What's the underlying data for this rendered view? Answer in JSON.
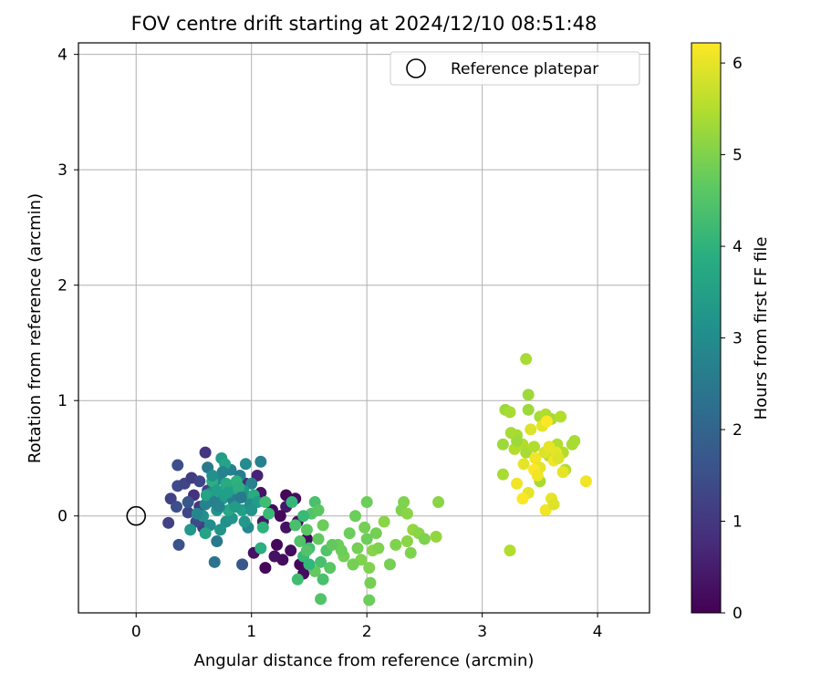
{
  "chart_data": {
    "type": "scatter",
    "title": "FOV centre drift starting at 2024/12/10 08:51:48",
    "xlabel": "Angular distance from reference (arcmin)",
    "ylabel": "Rotation from reference (arcmin)",
    "xlim": [
      -0.5,
      4.45
    ],
    "ylim": [
      -0.84,
      4.1
    ],
    "xticks": [
      0,
      1,
      2,
      3,
      4
    ],
    "yticks": [
      0,
      1,
      2,
      3,
      4
    ],
    "grid": true,
    "legend": {
      "placement": "top-right",
      "entries": [
        "Reference platepar"
      ]
    },
    "reference_point": {
      "x": 0,
      "y": 0,
      "label": "Reference platepar"
    },
    "colorbar": {
      "label": "Hours from first FF file",
      "colormap": "viridis",
      "range": [
        0,
        6.22
      ],
      "ticks": [
        0,
        1,
        2,
        3,
        4,
        5,
        6
      ]
    },
    "point_style": {
      "marker": "filled-circle"
    },
    "series": [
      {
        "points": [
          {
            "x": 1.22,
            "y": -0.25,
            "c": 0.1
          },
          {
            "x": 1.27,
            "y": -0.38,
            "c": 0.2
          },
          {
            "x": 1.3,
            "y": -0.1,
            "c": 0.3
          },
          {
            "x": 1.34,
            "y": -0.3,
            "c": 0.2
          },
          {
            "x": 1.4,
            "y": -0.05,
            "c": 0.3
          },
          {
            "x": 1.42,
            "y": -0.42,
            "c": 0.1
          },
          {
            "x": 1.45,
            "y": -0.5,
            "c": 0.2
          },
          {
            "x": 1.48,
            "y": -0.2,
            "c": 0.2
          },
          {
            "x": 1.12,
            "y": -0.45,
            "c": 0.1
          },
          {
            "x": 1.02,
            "y": -0.32,
            "c": 0.3
          },
          {
            "x": 1.3,
            "y": 0.08,
            "c": 0.4
          },
          {
            "x": 1.25,
            "y": 0.0,
            "c": 0.15
          },
          {
            "x": 1.18,
            "y": 0.05,
            "c": 0.2
          },
          {
            "x": 1.1,
            "y": -0.05,
            "c": 0.4
          },
          {
            "x": 1.3,
            "y": 0.18,
            "c": 0.1
          },
          {
            "x": 1.38,
            "y": 0.15,
            "c": 0.2
          },
          {
            "x": 1.08,
            "y": 0.2,
            "c": 0.3
          },
          {
            "x": 1.05,
            "y": 0.35,
            "c": 0.6
          },
          {
            "x": 0.95,
            "y": 0.28,
            "c": 0.7
          },
          {
            "x": 1.2,
            "y": -0.35,
            "c": 0.3
          },
          {
            "x": 0.3,
            "y": 0.15,
            "c": 1.2
          },
          {
            "x": 0.36,
            "y": 0.26,
            "c": 1.4
          },
          {
            "x": 0.42,
            "y": 0.28,
            "c": 1.3
          },
          {
            "x": 0.48,
            "y": 0.33,
            "c": 1.1
          },
          {
            "x": 0.6,
            "y": 0.55,
            "c": 1.0
          },
          {
            "x": 0.36,
            "y": 0.44,
            "c": 1.5
          },
          {
            "x": 0.28,
            "y": -0.06,
            "c": 1.2
          },
          {
            "x": 0.37,
            "y": -0.25,
            "c": 1.6
          },
          {
            "x": 0.45,
            "y": 0.03,
            "c": 1.3
          },
          {
            "x": 0.55,
            "y": 0.08,
            "c": 1.0
          },
          {
            "x": 0.35,
            "y": 0.08,
            "c": 1.5
          },
          {
            "x": 0.5,
            "y": 0.18,
            "c": 0.9
          },
          {
            "x": 0.58,
            "y": -0.1,
            "c": 1.1
          },
          {
            "x": 0.45,
            "y": 0.12,
            "c": 1.7
          },
          {
            "x": 0.52,
            "y": -0.05,
            "c": 1.4
          },
          {
            "x": 0.62,
            "y": 0.22,
            "c": 1.2
          },
          {
            "x": 0.68,
            "y": -0.4,
            "c": 2.4
          },
          {
            "x": 0.7,
            "y": -0.22,
            "c": 2.5
          },
          {
            "x": 0.92,
            "y": -0.42,
            "c": 1.7
          },
          {
            "x": 0.55,
            "y": 0.3,
            "c": 1.3
          },
          {
            "x": 0.6,
            "y": 0.1,
            "c": 2.8
          },
          {
            "x": 0.65,
            "y": 0.2,
            "c": 3.0
          },
          {
            "x": 0.7,
            "y": 0.05,
            "c": 3.2
          },
          {
            "x": 0.72,
            "y": 0.32,
            "c": 2.9
          },
          {
            "x": 0.75,
            "y": 0.15,
            "c": 3.4
          },
          {
            "x": 0.78,
            "y": -0.05,
            "c": 3.1
          },
          {
            "x": 0.8,
            "y": 0.25,
            "c": 3.6
          },
          {
            "x": 0.82,
            "y": 0.4,
            "c": 2.7
          },
          {
            "x": 0.85,
            "y": 0.1,
            "c": 3.3
          },
          {
            "x": 0.88,
            "y": 0.2,
            "c": 3.8
          },
          {
            "x": 0.9,
            "y": 0.35,
            "c": 2.6
          },
          {
            "x": 0.92,
            "y": 0.05,
            "c": 3.5
          },
          {
            "x": 0.95,
            "y": 0.45,
            "c": 3.0
          },
          {
            "x": 0.98,
            "y": 0.15,
            "c": 3.7
          },
          {
            "x": 1.0,
            "y": 0.28,
            "c": 2.8
          },
          {
            "x": 0.62,
            "y": 0.42,
            "c": 2.5
          },
          {
            "x": 0.66,
            "y": 0.3,
            "c": 3.9
          },
          {
            "x": 0.74,
            "y": 0.5,
            "c": 3.4
          },
          {
            "x": 0.77,
            "y": 0.45,
            "c": 3.6
          },
          {
            "x": 0.83,
            "y": -0.02,
            "c": 3.2
          },
          {
            "x": 0.87,
            "y": 0.3,
            "c": 4.0
          },
          {
            "x": 0.93,
            "y": 0.22,
            "c": 3.3
          },
          {
            "x": 0.97,
            "y": -0.1,
            "c": 2.9
          },
          {
            "x": 1.02,
            "y": 0.18,
            "c": 3.8
          },
          {
            "x": 1.08,
            "y": 0.47,
            "c": 2.7
          },
          {
            "x": 0.58,
            "y": 0.0,
            "c": 3.1
          },
          {
            "x": 0.64,
            "y": -0.08,
            "c": 3.0
          },
          {
            "x": 0.7,
            "y": 0.22,
            "c": 3.5
          },
          {
            "x": 0.75,
            "y": 0.38,
            "c": 2.8
          },
          {
            "x": 0.8,
            "y": 0.05,
            "c": 3.7
          },
          {
            "x": 0.84,
            "y": 0.14,
            "c": 2.6
          },
          {
            "x": 0.89,
            "y": 0.25,
            "c": 3.9
          },
          {
            "x": 0.94,
            "y": -0.05,
            "c": 3.3
          },
          {
            "x": 0.99,
            "y": 0.1,
            "c": 3.0
          },
          {
            "x": 0.61,
            "y": 0.18,
            "c": 3.6
          },
          {
            "x": 0.68,
            "y": 0.12,
            "c": 2.7
          },
          {
            "x": 0.73,
            "y": -0.12,
            "c": 3.2
          },
          {
            "x": 0.86,
            "y": 0.08,
            "c": 3.4
          },
          {
            "x": 0.78,
            "y": 0.28,
            "c": 3.8
          },
          {
            "x": 0.91,
            "y": 0.16,
            "c": 2.5
          },
          {
            "x": 1.05,
            "y": 0.12,
            "c": 3.4
          },
          {
            "x": 1.08,
            "y": -0.28,
            "c": 3.9
          },
          {
            "x": 1.1,
            "y": -0.1,
            "c": 4.0
          },
          {
            "x": 0.47,
            "y": -0.12,
            "c": 3.3
          },
          {
            "x": 0.53,
            "y": 0.02,
            "c": 2.9
          },
          {
            "x": 0.66,
            "y": 0.35,
            "c": 3.1
          },
          {
            "x": 0.79,
            "y": 0.2,
            "c": 3.5
          },
          {
            "x": 0.6,
            "y": -0.15,
            "c": 3.6
          },
          {
            "x": 0.72,
            "y": 0.08,
            "c": 2.8
          },
          {
            "x": 1.0,
            "y": 0.05,
            "c": 3.2
          },
          {
            "x": 1.15,
            "y": 0.02,
            "c": 4.2
          },
          {
            "x": 1.12,
            "y": 0.12,
            "c": 4.3
          },
          {
            "x": 1.35,
            "y": 0.12,
            "c": 4.1
          },
          {
            "x": 1.38,
            "y": -0.08,
            "c": 4.4
          },
          {
            "x": 1.42,
            "y": -0.22,
            "c": 4.5
          },
          {
            "x": 1.45,
            "y": -0.35,
            "c": 4.2
          },
          {
            "x": 1.48,
            "y": -0.12,
            "c": 4.6
          },
          {
            "x": 1.5,
            "y": -0.28,
            "c": 4.3
          },
          {
            "x": 1.52,
            "y": 0.02,
            "c": 4.5
          },
          {
            "x": 1.55,
            "y": 0.12,
            "c": 4.4
          },
          {
            "x": 1.58,
            "y": -0.2,
            "c": 4.7
          },
          {
            "x": 1.6,
            "y": -0.4,
            "c": 4.4
          },
          {
            "x": 1.62,
            "y": -0.08,
            "c": 4.8
          },
          {
            "x": 1.65,
            "y": -0.3,
            "c": 4.5
          },
          {
            "x": 1.68,
            "y": -0.45,
            "c": 4.6
          },
          {
            "x": 1.4,
            "y": -0.55,
            "c": 4.3
          },
          {
            "x": 1.6,
            "y": -0.72,
            "c": 4.5
          },
          {
            "x": 1.55,
            "y": -0.48,
            "c": 4.7
          },
          {
            "x": 1.45,
            "y": 0.0,
            "c": 4.2
          },
          {
            "x": 1.58,
            "y": 0.05,
            "c": 4.6
          },
          {
            "x": 1.5,
            "y": -0.42,
            "c": 4.1
          },
          {
            "x": 1.62,
            "y": -0.55,
            "c": 4.4
          },
          {
            "x": 1.48,
            "y": -0.3,
            "c": 4.5
          },
          {
            "x": 1.75,
            "y": -0.25,
            "c": 4.8
          },
          {
            "x": 1.8,
            "y": -0.35,
            "c": 4.9
          },
          {
            "x": 1.85,
            "y": -0.15,
            "c": 4.8
          },
          {
            "x": 1.88,
            "y": -0.42,
            "c": 5.0
          },
          {
            "x": 1.9,
            "y": 0.0,
            "c": 4.8
          },
          {
            "x": 1.92,
            "y": -0.28,
            "c": 4.9
          },
          {
            "x": 1.95,
            "y": -0.38,
            "c": 5.0
          },
          {
            "x": 1.98,
            "y": -0.1,
            "c": 4.9
          },
          {
            "x": 2.0,
            "y": -0.2,
            "c": 4.8
          },
          {
            "x": 2.02,
            "y": -0.45,
            "c": 5.0
          },
          {
            "x": 2.03,
            "y": -0.58,
            "c": 4.9
          },
          {
            "x": 2.05,
            "y": -0.3,
            "c": 5.1
          },
          {
            "x": 2.0,
            "y": 0.12,
            "c": 4.8
          },
          {
            "x": 2.08,
            "y": -0.15,
            "c": 4.9
          },
          {
            "x": 2.1,
            "y": -0.28,
            "c": 5.0
          },
          {
            "x": 2.15,
            "y": -0.05,
            "c": 5.1
          },
          {
            "x": 2.2,
            "y": -0.42,
            "c": 4.9
          },
          {
            "x": 2.25,
            "y": -0.25,
            "c": 5.0
          },
          {
            "x": 2.3,
            "y": 0.05,
            "c": 5.0
          },
          {
            "x": 2.35,
            "y": -0.22,
            "c": 5.1
          },
          {
            "x": 2.38,
            "y": -0.32,
            "c": 5.0
          },
          {
            "x": 2.4,
            "y": -0.12,
            "c": 5.2
          },
          {
            "x": 2.45,
            "y": -0.15,
            "c": 5.1
          },
          {
            "x": 2.5,
            "y": -0.2,
            "c": 5.0
          },
          {
            "x": 2.6,
            "y": -0.18,
            "c": 5.2
          },
          {
            "x": 2.62,
            "y": 0.12,
            "c": 5.1
          },
          {
            "x": 2.32,
            "y": 0.12,
            "c": 5.0
          },
          {
            "x": 2.35,
            "y": 0.02,
            "c": 5.1
          },
          {
            "x": 2.02,
            "y": -0.73,
            "c": 4.8
          },
          {
            "x": 1.88,
            "y": -0.42,
            "c": 4.9
          },
          {
            "x": 1.78,
            "y": -0.3,
            "c": 4.8
          },
          {
            "x": 1.7,
            "y": -0.25,
            "c": 4.7
          },
          {
            "x": 3.38,
            "y": 1.36,
            "c": 5.4
          },
          {
            "x": 3.4,
            "y": 1.05,
            "c": 5.3
          },
          {
            "x": 3.2,
            "y": 0.92,
            "c": 5.3
          },
          {
            "x": 3.24,
            "y": 0.9,
            "c": 5.4
          },
          {
            "x": 3.4,
            "y": 0.92,
            "c": 5.3
          },
          {
            "x": 3.5,
            "y": 0.86,
            "c": 5.4
          },
          {
            "x": 3.55,
            "y": 0.88,
            "c": 5.5
          },
          {
            "x": 3.6,
            "y": 0.84,
            "c": 5.4
          },
          {
            "x": 3.3,
            "y": 0.7,
            "c": 5.4
          },
          {
            "x": 3.35,
            "y": 0.62,
            "c": 5.5
          },
          {
            "x": 3.28,
            "y": 0.58,
            "c": 5.5
          },
          {
            "x": 3.18,
            "y": 0.62,
            "c": 5.3
          },
          {
            "x": 3.18,
            "y": 0.36,
            "c": 5.4
          },
          {
            "x": 3.3,
            "y": 0.65,
            "c": 5.3
          },
          {
            "x": 3.38,
            "y": 0.55,
            "c": 5.4
          },
          {
            "x": 3.45,
            "y": 0.6,
            "c": 5.5
          },
          {
            "x": 3.25,
            "y": 0.72,
            "c": 5.4
          },
          {
            "x": 3.65,
            "y": 0.62,
            "c": 5.5
          },
          {
            "x": 3.7,
            "y": 0.55,
            "c": 5.5
          },
          {
            "x": 3.72,
            "y": 0.4,
            "c": 5.5
          },
          {
            "x": 3.78,
            "y": 0.62,
            "c": 5.4
          },
          {
            "x": 3.8,
            "y": 0.65,
            "c": 5.4
          },
          {
            "x": 3.24,
            "y": -0.3,
            "c": 5.5
          },
          {
            "x": 3.5,
            "y": 0.3,
            "c": 5.4
          },
          {
            "x": 3.58,
            "y": 0.52,
            "c": 5.5
          },
          {
            "x": 3.68,
            "y": 0.86,
            "c": 5.5
          },
          {
            "x": 3.36,
            "y": 0.45,
            "c": 6.0
          },
          {
            "x": 3.42,
            "y": 0.75,
            "c": 5.9
          },
          {
            "x": 3.46,
            "y": 0.5,
            "c": 6.1
          },
          {
            "x": 3.5,
            "y": 0.42,
            "c": 6.0
          },
          {
            "x": 3.52,
            "y": 0.78,
            "c": 6.0
          },
          {
            "x": 3.54,
            "y": 0.55,
            "c": 5.9
          },
          {
            "x": 3.56,
            "y": 0.82,
            "c": 6.2
          },
          {
            "x": 3.58,
            "y": 0.6,
            "c": 6.0
          },
          {
            "x": 3.62,
            "y": 0.48,
            "c": 6.1
          },
          {
            "x": 3.64,
            "y": 0.55,
            "c": 6.0
          },
          {
            "x": 3.66,
            "y": 0.5,
            "c": 5.9
          },
          {
            "x": 3.3,
            "y": 0.28,
            "c": 6.1
          },
          {
            "x": 3.4,
            "y": 0.2,
            "c": 6.0
          },
          {
            "x": 3.45,
            "y": 0.4,
            "c": 6.2
          },
          {
            "x": 3.55,
            "y": 0.05,
            "c": 6.1
          },
          {
            "x": 3.6,
            "y": 0.15,
            "c": 6.0
          },
          {
            "x": 3.62,
            "y": 0.1,
            "c": 5.9
          },
          {
            "x": 3.9,
            "y": 0.3,
            "c": 6.1
          },
          {
            "x": 3.7,
            "y": 0.38,
            "c": 6.0
          },
          {
            "x": 3.35,
            "y": 0.15,
            "c": 6.2
          },
          {
            "x": 3.48,
            "y": 0.35,
            "c": 6.1
          }
        ]
      }
    ]
  }
}
